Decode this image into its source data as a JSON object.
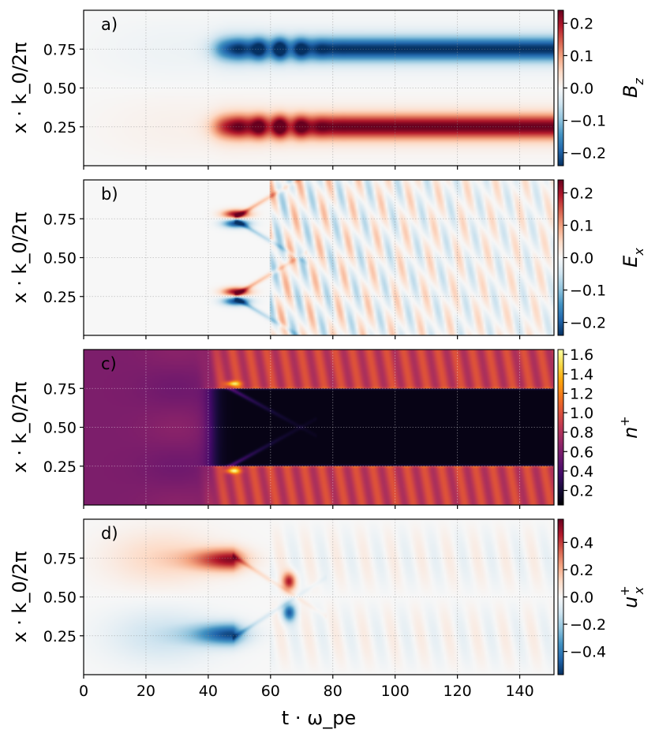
{
  "figure": {
    "xlabel": "t · ω_pe",
    "ylabel": "x · k_0/2π"
  },
  "chart_data": [
    {
      "type": "heatmap",
      "panel": "a)",
      "quantity": "B_z",
      "colormap": "RdBu_r",
      "xlim": [
        0,
        151
      ],
      "ylim": [
        0,
        1
      ],
      "xticks": [
        0,
        20,
        40,
        60,
        80,
        100,
        120,
        140
      ],
      "yticks": [
        0.25,
        0.5,
        0.75
      ],
      "ytick_labels": [
        "0.25",
        "0.50",
        "0.75"
      ],
      "clim": [
        -0.24,
        0.24
      ],
      "colorbar_ticks": [
        -0.2,
        -0.1,
        0.0,
        0.1,
        0.2
      ],
      "colorbar_labels": [
        "−0.2",
        "−0.1",
        "0.0",
        "0.1",
        "0.2"
      ],
      "colorbar_label": "B",
      "colorbar_label_sub": "z",
      "colorbar_label_sup": "",
      "features": "Weak diffuse field for t<40; from t≈40 two steady bands: positive (~+0.22) at x≈0.25, negative (~−0.22) at x≈0.75, with bursts near t≈55–70"
    },
    {
      "type": "heatmap",
      "panel": "b)",
      "quantity": "E_x",
      "colormap": "RdBu_r",
      "xlim": [
        0,
        151
      ],
      "ylim": [
        0,
        1
      ],
      "xticks": [
        0,
        20,
        40,
        60,
        80,
        100,
        120,
        140
      ],
      "yticks": [
        0.25,
        0.5,
        0.75
      ],
      "ytick_labels": [
        "0.25",
        "0.50",
        "0.75"
      ],
      "clim": [
        -0.24,
        0.24
      ],
      "colorbar_ticks": [
        -0.2,
        -0.1,
        0.0,
        0.1,
        0.2
      ],
      "colorbar_labels": [
        "−0.2",
        "−0.1",
        "0.0",
        "0.1",
        "0.2"
      ],
      "colorbar_label": "E",
      "colorbar_label_sub": "x",
      "colorbar_label_sup": "",
      "features": "Near zero until t≈48; strong dipoles at x≈0.25 and 0.75, crossing X-shaped wave fronts meeting near t≈63, then weak turbulent fluctuations"
    },
    {
      "type": "heatmap",
      "panel": "c)",
      "quantity": "n^+",
      "colormap": "inferno",
      "xlim": [
        0,
        151
      ],
      "ylim": [
        0,
        1
      ],
      "xticks": [
        0,
        20,
        40,
        60,
        80,
        100,
        120,
        140
      ],
      "yticks": [
        0.25,
        0.5,
        0.75
      ],
      "ytick_labels": [
        "0.25",
        "0.50",
        "0.75"
      ],
      "clim": [
        0.05,
        1.65
      ],
      "colorbar_ticks": [
        0.2,
        0.4,
        0.6,
        0.8,
        1.0,
        1.2,
        1.4,
        1.6
      ],
      "colorbar_labels": [
        "0.2",
        "0.4",
        "0.6",
        "0.8",
        "1.0",
        "1.2",
        "1.4",
        "1.6"
      ],
      "colorbar_label": "n",
      "colorbar_label_sub": "",
      "colorbar_label_sup": "+",
      "features": "Uniform density ~0.6 for t<40; afterwards depletion (~0.05) between x≈0.25–0.75 and enhanced density (~0.9–1.2) outside, bright spikes near t≈48"
    },
    {
      "type": "heatmap",
      "panel": "d)",
      "quantity": "u_x^+",
      "colormap": "RdBu_r",
      "xlim": [
        0,
        151
      ],
      "ylim": [
        0,
        1
      ],
      "xticks": [
        0,
        20,
        40,
        60,
        80,
        100,
        120,
        140
      ],
      "xtick_labels": [
        "0",
        "20",
        "40",
        "60",
        "80",
        "100",
        "120",
        "140"
      ],
      "yticks": [
        0.25,
        0.5,
        0.75
      ],
      "ytick_labels": [
        "0.25",
        "0.50",
        "0.75"
      ],
      "clim": [
        -0.57,
        0.57
      ],
      "colorbar_ticks": [
        -0.4,
        -0.2,
        0.0,
        0.2,
        0.4
      ],
      "colorbar_labels": [
        "−0.4",
        "−0.2",
        "0.0",
        "0.2",
        "0.4"
      ],
      "colorbar_label": "u",
      "colorbar_label_sub": "x",
      "colorbar_label_sup": "+",
      "features": "Growing positive blob at x≈0.75 and negative blob at x≈0.25 peaking near t≈48, diagonal streaks converging near t≈62–70, then weak fluctuations"
    }
  ]
}
